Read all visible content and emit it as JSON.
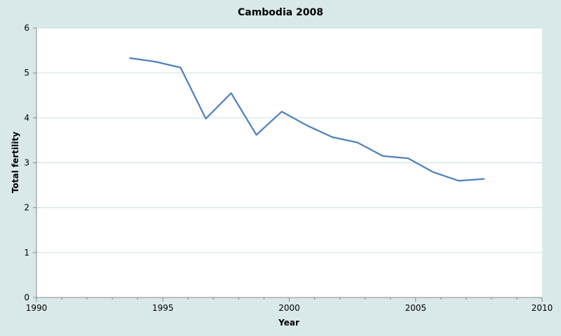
{
  "chart_data": {
    "type": "line",
    "title": "Cambodia 2008",
    "xlabel": "Year",
    "ylabel": "Total fertility",
    "xlim": [
      1990,
      2010
    ],
    "ylim": [
      0,
      6
    ],
    "x_ticks": [
      "1990",
      "1995",
      "2000",
      "2005",
      "2010"
    ],
    "y_ticks": [
      "0",
      "1",
      "2",
      "3",
      "4",
      "5",
      "6"
    ],
    "grid": "horizontal",
    "legend": "none",
    "series": [
      {
        "color": "#4f81bd",
        "x": [
          1993.7,
          1994.7,
          1995.7,
          1996.7,
          1997.7,
          1998.7,
          1999.7,
          2000.7,
          2001.7,
          2002.7,
          2003.7,
          2004.7,
          2005.7,
          2006.7,
          2007.7
        ],
        "y": [
          5.33,
          5.25,
          5.12,
          3.98,
          4.55,
          3.62,
          4.14,
          3.83,
          3.57,
          3.45,
          3.15,
          3.1,
          2.79,
          2.6,
          2.64
        ]
      }
    ]
  }
}
